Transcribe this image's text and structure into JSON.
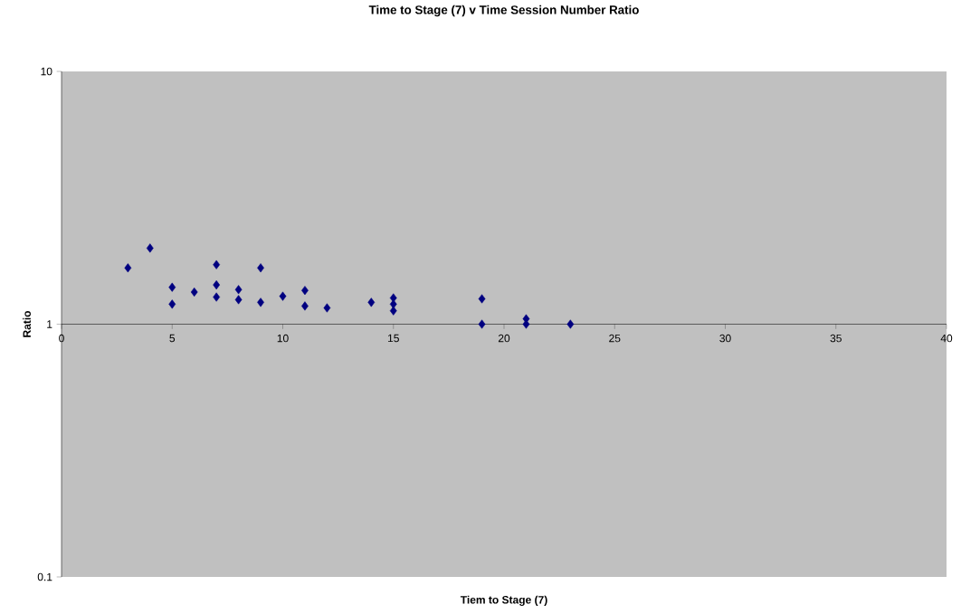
{
  "chart_data": {
    "type": "scatter",
    "title": "Time to Stage (7) v Time Session Number Ratio",
    "xlabel": "Tiem to Stage (7)",
    "ylabel": "Ratio",
    "series": [
      {
        "color": "#000080",
        "x": [
          3,
          4,
          5,
          5,
          6,
          7,
          7,
          7,
          8,
          8,
          9,
          9,
          10,
          11,
          11,
          12,
          14,
          15,
          15,
          15,
          19,
          19,
          21,
          21,
          23
        ],
        "values": [
          1.67,
          2.0,
          1.4,
          1.2,
          1.34,
          1.72,
          1.43,
          1.28,
          1.37,
          1.25,
          1.67,
          1.22,
          1.29,
          1.36,
          1.18,
          1.16,
          1.22,
          1.27,
          1.2,
          1.13,
          1.26,
          1.0,
          1.05,
          1.0,
          1.0
        ]
      }
    ],
    "xlim": [
      0,
      40
    ],
    "xticks": [
      0,
      5,
      10,
      15,
      20,
      25,
      30,
      35,
      40
    ],
    "ylim": [
      0.1,
      10
    ],
    "yticks": [
      0.1,
      1,
      10
    ],
    "log": "y",
    "marker": "diamond",
    "legend": false
  }
}
